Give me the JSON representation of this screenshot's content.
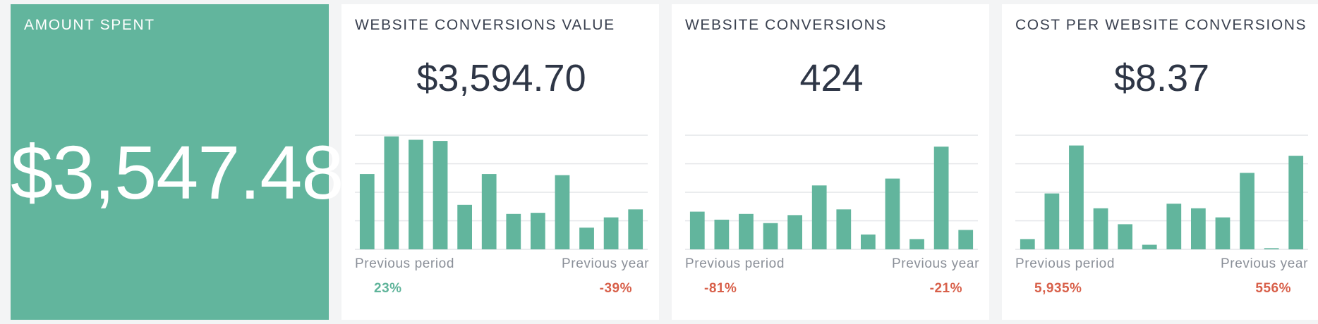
{
  "colors": {
    "hero_bg": "#62b59d",
    "bar": "#62b59d",
    "grid": "#e3e5e8",
    "positive": "#5fb49a",
    "negative": "#d8604a"
  },
  "hero": {
    "title": "AMOUNT SPENT",
    "value": "$3,547.48"
  },
  "widgets": [
    {
      "title": "WEBSITE CONVERSIONS VALUE",
      "value": "$3,594.70",
      "previous_period_label": "Previous period",
      "previous_year_label": "Previous year",
      "previous_period_change": "23%",
      "previous_period_trend": "positive",
      "previous_year_change": "-39%",
      "previous_year_trend": "negative"
    },
    {
      "title": "WEBSITE CONVERSIONS",
      "value": "424",
      "previous_period_label": "Previous period",
      "previous_year_label": "Previous year",
      "previous_period_change": "-81%",
      "previous_period_trend": "negative",
      "previous_year_change": "-21%",
      "previous_year_trend": "negative"
    },
    {
      "title": "COST PER WEBSITE CONVERSIONS",
      "value": "$8.37",
      "previous_period_label": "Previous period",
      "previous_year_label": "Previous year",
      "previous_period_change": "5,935%",
      "previous_period_trend": "negative",
      "previous_year_change": "556%",
      "previous_year_trend": "negative"
    }
  ],
  "chart_data": [
    {
      "type": "bar",
      "ylim": [
        0,
        100
      ],
      "grid": true,
      "values": [
        66,
        99,
        96,
        95,
        39,
        66,
        31,
        32,
        65,
        19,
        28,
        35
      ]
    },
    {
      "type": "bar",
      "ylim": [
        0,
        100
      ],
      "grid": true,
      "values": [
        33,
        26,
        31,
        23,
        30,
        56,
        35,
        13,
        62,
        9,
        90,
        17
      ]
    },
    {
      "type": "bar",
      "ylim": [
        0,
        100
      ],
      "grid": true,
      "values": [
        9,
        49,
        91,
        36,
        22,
        4,
        40,
        36,
        28,
        67,
        1,
        82
      ]
    }
  ]
}
